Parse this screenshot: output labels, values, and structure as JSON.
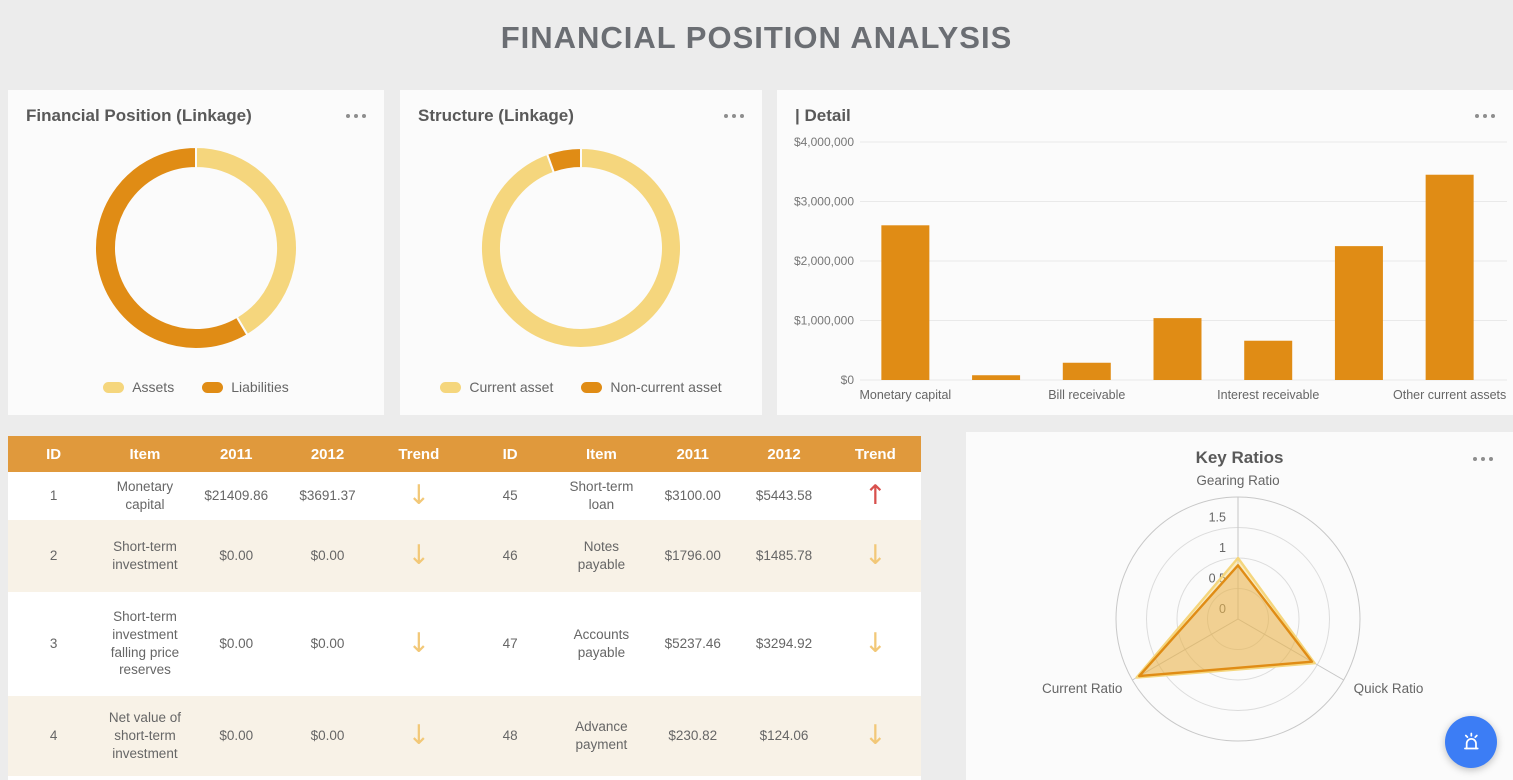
{
  "page": {
    "title": "FINANCIAL POSITION ANALYSIS",
    "background": "#ECECEC"
  },
  "colors": {
    "accent_orange": "#E08C15",
    "light_yellow": "#F5D67D",
    "table_header_orange": "#E0993C",
    "row_stripe_cream": "#F8F2E7",
    "trend_up_red": "#D8504D",
    "trend_down_yellow": "#F2C878",
    "fab_blue": "#3C7DF5",
    "title_gray": "#6B6E73",
    "text_gray": "#666666"
  },
  "icons": {
    "ellipsis": "ellipsis-menu-icon",
    "alarm": "alarm-light-icon",
    "up_arrow": "↑",
    "down_arrow": "↓"
  },
  "cards": {
    "financial_position": {
      "title": "Financial Position (Linkage)"
    },
    "structure": {
      "title": "Structure (Linkage)"
    },
    "detail": {
      "title": "| Detail"
    },
    "key_ratios": {
      "title": "Key Ratios"
    }
  },
  "chart_data": [
    {
      "id": "donut-financial",
      "type": "pie",
      "title": "Financial Position (Linkage)",
      "slices": [
        {
          "label": "Assets",
          "value": 41.5,
          "color": "#F5D67D"
        },
        {
          "label": "Liabilities",
          "value": 58.5,
          "color": "#E08C15"
        }
      ],
      "legend_position": "bottom"
    },
    {
      "id": "donut-structure",
      "type": "pie",
      "title": "Structure (Linkage)",
      "slices": [
        {
          "label": "Current asset",
          "value": 94.5,
          "color": "#F5D67D"
        },
        {
          "label": "Non-current asset",
          "value": 5.5,
          "color": "#E08C15"
        }
      ],
      "legend_position": "bottom"
    },
    {
      "id": "bars-detail",
      "type": "bar",
      "title": "| Detail",
      "color": "#E08C15",
      "categories": [
        "Monetary capital",
        "",
        "Bill receivable",
        "",
        "Interest receivable",
        "",
        "Other current assets"
      ],
      "values": [
        2600000,
        80000,
        290000,
        1040000,
        660000,
        2250000,
        3450000
      ],
      "ylim": [
        0,
        4000000
      ],
      "y_ticks": [
        {
          "label": "$0",
          "value": 0
        },
        {
          "label": "$1,000,000",
          "value": 1000000
        },
        {
          "label": "$2,000,000",
          "value": 2000000
        },
        {
          "label": "$3,000,000",
          "value": 3000000
        },
        {
          "label": "$4,000,000",
          "value": 4000000
        }
      ],
      "grid": true
    },
    {
      "id": "radar-key",
      "type": "radar",
      "title": "Key Ratios",
      "axes": [
        "Gearing Ratio",
        "Quick Ratio",
        "Current Ratio"
      ],
      "max": 2,
      "tick_labels": [
        "0",
        "0.5",
        "1",
        "1.5"
      ],
      "tick_values": [
        0,
        0.5,
        1,
        1.5
      ],
      "series": [
        {
          "name": "series-1",
          "color": "#F5D67D",
          "fill": "rgba(245,214,125,0.45)",
          "values": [
            1.0,
            1.45,
            1.92
          ]
        },
        {
          "name": "series-2",
          "color": "#E08C15",
          "fill": "rgba(224,140,21,0.28)",
          "values": [
            0.88,
            1.4,
            1.87
          ]
        }
      ]
    }
  ],
  "table": {
    "headers": [
      "ID",
      "Item",
      "2011",
      "2012",
      "Trend"
    ],
    "rows_left": [
      {
        "id": "1",
        "item": "Monetary capital",
        "y2011": "$21409.86",
        "y2012": "$3691.37",
        "trend": "down"
      },
      {
        "id": "2",
        "item": "Short-term investment",
        "y2011": "$0.00",
        "y2012": "$0.00",
        "trend": "down"
      },
      {
        "id": "3",
        "item": "Short-term investment falling price reserves",
        "y2011": "$0.00",
        "y2012": "$0.00",
        "trend": "down"
      },
      {
        "id": "4",
        "item": "Net value of short-term investment",
        "y2011": "$0.00",
        "y2012": "$0.00",
        "trend": "down"
      }
    ],
    "rows_right": [
      {
        "id": "45",
        "item": "Short-term loan",
        "y2011": "$3100.00",
        "y2012": "$5443.58",
        "trend": "up"
      },
      {
        "id": "46",
        "item": "Notes payable",
        "y2011": "$1796.00",
        "y2012": "$1485.78",
        "trend": "down"
      },
      {
        "id": "47",
        "item": "Accounts payable",
        "y2011": "$5237.46",
        "y2012": "$3294.92",
        "trend": "down"
      },
      {
        "id": "48",
        "item": "Advance payment",
        "y2011": "$230.82",
        "y2012": "$124.06",
        "trend": "down"
      }
    ]
  }
}
